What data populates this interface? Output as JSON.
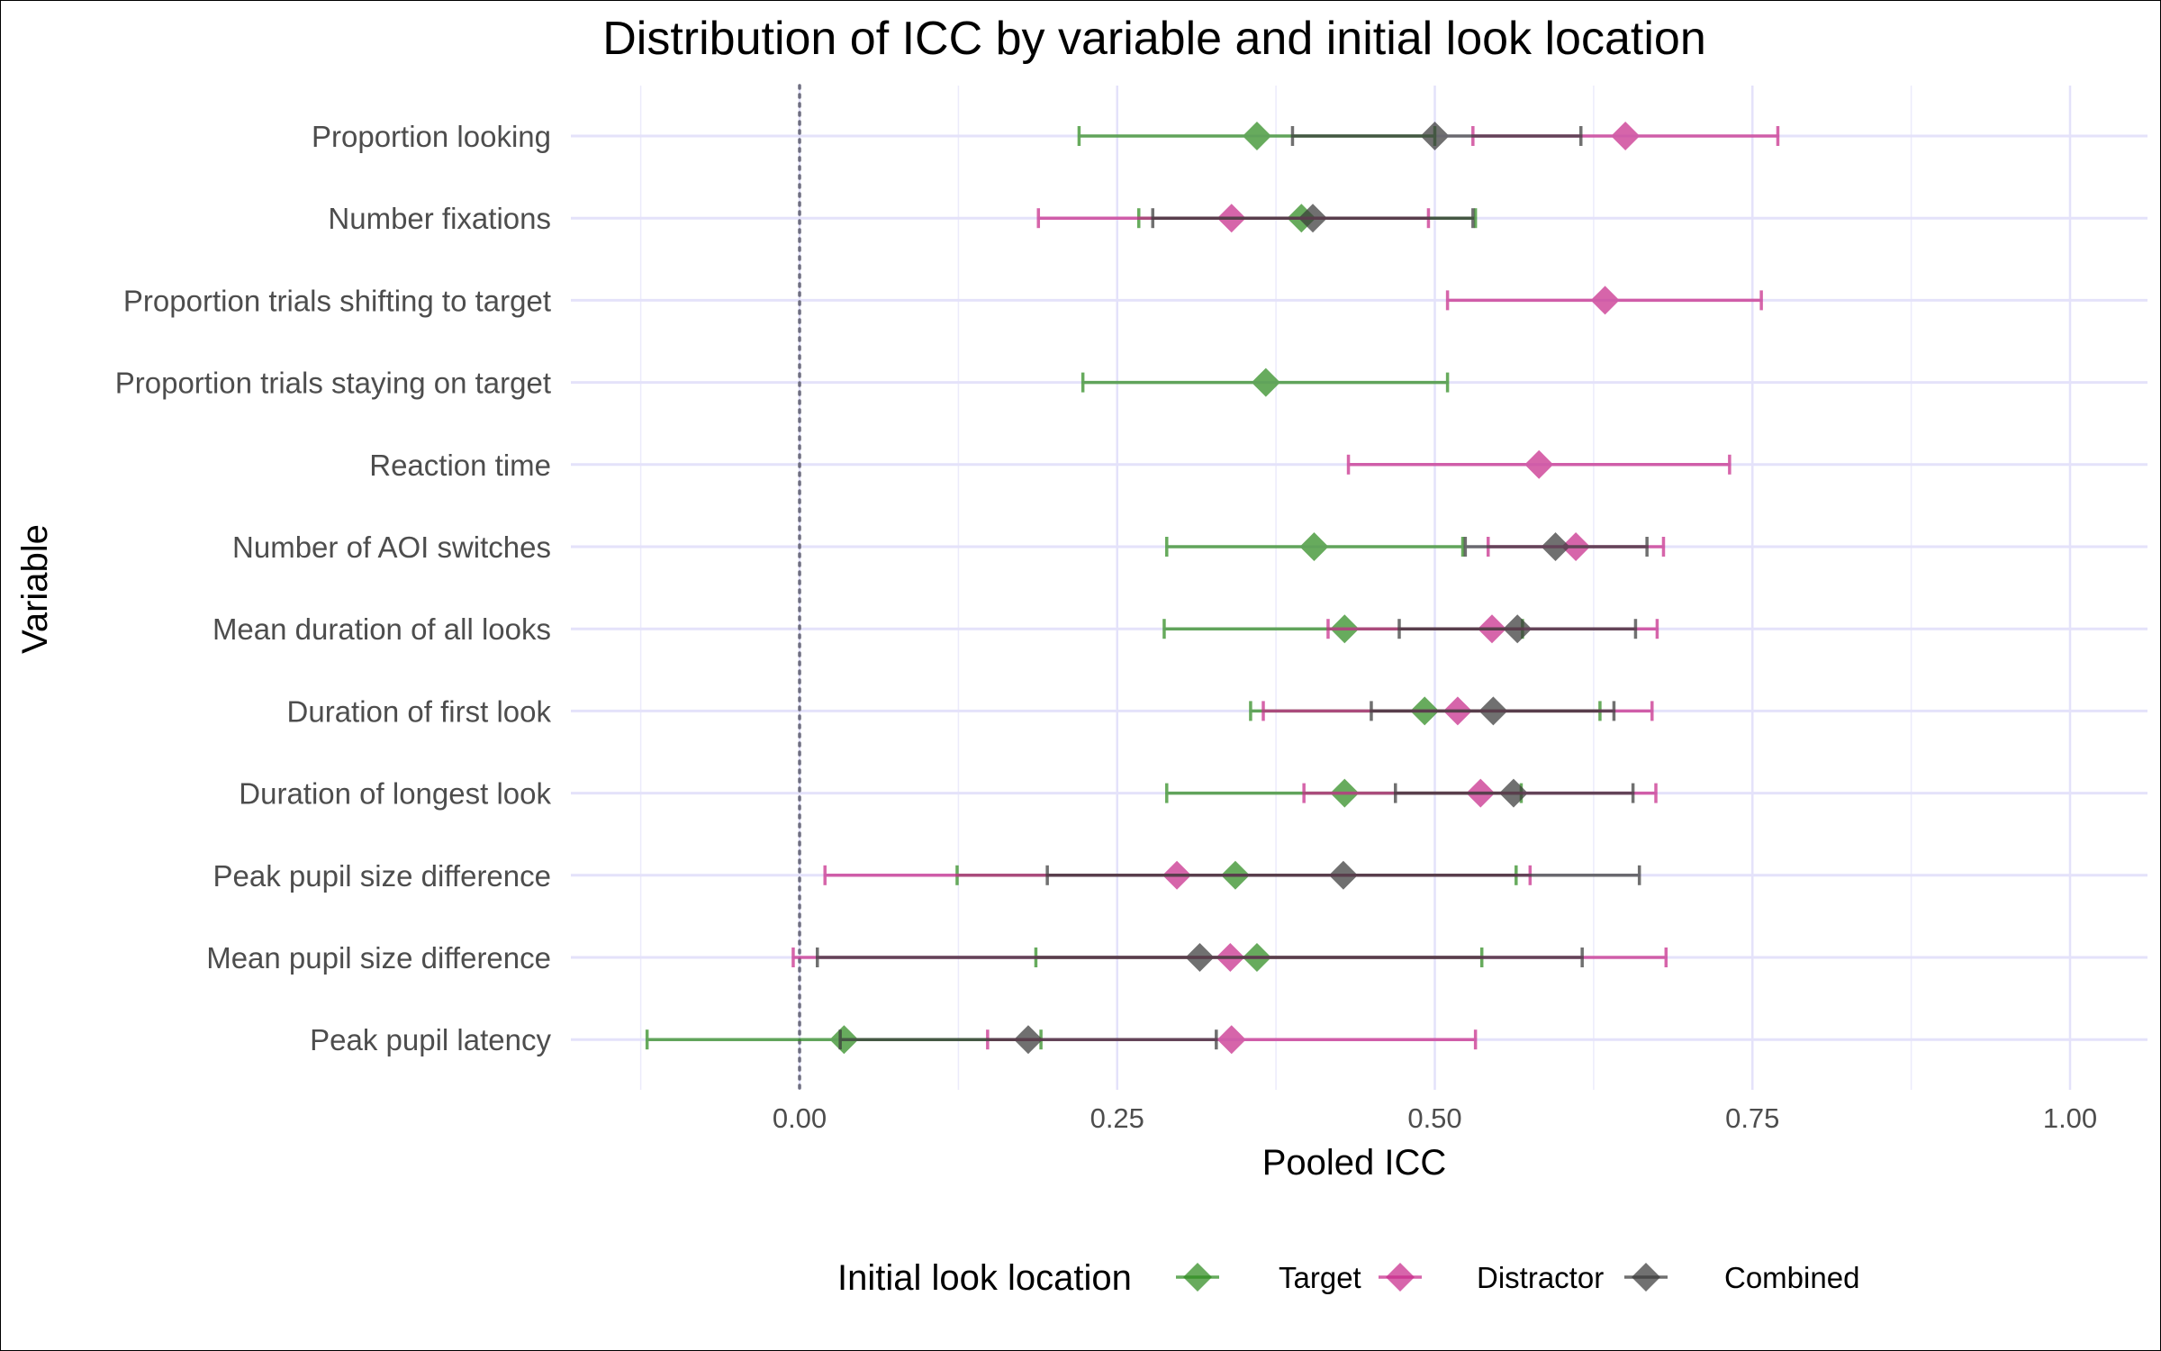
{
  "chart_data": {
    "type": "scatter",
    "title": "Distribution of ICC by variable and initial look location",
    "xlabel": "Pooled ICC",
    "ylabel": "Variable",
    "xlim": [
      -0.18,
      1.04
    ],
    "x_ticks": [
      0.0,
      0.25,
      0.5,
      0.75,
      1.0
    ],
    "x_tick_labels": [
      "0.00",
      "0.25",
      "0.50",
      "0.75",
      "1.00"
    ],
    "x_minor": [
      -0.125,
      0.125,
      0.375,
      0.625,
      0.875
    ],
    "reference_line": 0,
    "grid": true,
    "legend_position": "bottom",
    "legend_title": "Initial look location",
    "categories": [
      "Proportion looking",
      "Number fixations",
      "Proportion trials shifting to target",
      "Proportion trials staying on target",
      "Reaction time",
      "Number of AOI switches",
      "Mean duration of all looks",
      "Duration of first look",
      "Duration of longest look",
      "Peak pupil size difference",
      "Mean pupil size difference",
      "Peak pupil latency"
    ],
    "series": [
      {
        "name": "Target",
        "color": "#2e8b1f",
        "points": [
          {
            "category": "Proportion looking",
            "value": 0.36,
            "low": 0.22,
            "high": 0.5
          },
          {
            "category": "Number fixations",
            "value": 0.395,
            "low": 0.267,
            "high": 0.532
          },
          {
            "category": "Proportion trials staying on target",
            "value": 0.367,
            "low": 0.223,
            "high": 0.51
          },
          {
            "category": "Number of AOI switches",
            "value": 0.405,
            "low": 0.289,
            "high": 0.522
          },
          {
            "category": "Mean duration of all looks",
            "value": 0.429,
            "low": 0.287,
            "high": 0.569
          },
          {
            "category": "Duration of first look",
            "value": 0.492,
            "low": 0.355,
            "high": 0.63
          },
          {
            "category": "Duration of longest look",
            "value": 0.429,
            "low": 0.289,
            "high": 0.568
          },
          {
            "category": "Peak pupil size difference",
            "value": 0.343,
            "low": 0.124,
            "high": 0.564
          },
          {
            "category": "Mean pupil size difference",
            "value": 0.36,
            "low": 0.186,
            "high": 0.537
          },
          {
            "category": "Peak pupil latency",
            "value": 0.035,
            "low": -0.12,
            "high": 0.19
          }
        ]
      },
      {
        "name": "Distractor",
        "color": "#c72a8a",
        "points": [
          {
            "category": "Proportion looking",
            "value": 0.65,
            "low": 0.53,
            "high": 0.77
          },
          {
            "category": "Number fixations",
            "value": 0.34,
            "low": 0.188,
            "high": 0.495
          },
          {
            "category": "Proportion trials shifting to target",
            "value": 0.634,
            "low": 0.51,
            "high": 0.757
          },
          {
            "category": "Reaction time",
            "value": 0.582,
            "low": 0.432,
            "high": 0.732
          },
          {
            "category": "Number of AOI switches",
            "value": 0.611,
            "low": 0.542,
            "high": 0.68
          },
          {
            "category": "Mean duration of all looks",
            "value": 0.545,
            "low": 0.416,
            "high": 0.675
          },
          {
            "category": "Duration of first look",
            "value": 0.518,
            "low": 0.365,
            "high": 0.671
          },
          {
            "category": "Duration of longest look",
            "value": 0.536,
            "low": 0.397,
            "high": 0.674
          },
          {
            "category": "Peak pupil size difference",
            "value": 0.297,
            "low": 0.02,
            "high": 0.575
          },
          {
            "category": "Mean pupil size difference",
            "value": 0.339,
            "low": -0.005,
            "high": 0.682
          },
          {
            "category": "Peak pupil latency",
            "value": 0.34,
            "low": 0.148,
            "high": 0.532
          }
        ]
      },
      {
        "name": "Combined",
        "color": "#3a3a3a",
        "points": [
          {
            "category": "Proportion looking",
            "value": 0.5,
            "low": 0.388,
            "high": 0.615
          },
          {
            "category": "Number fixations",
            "value": 0.404,
            "low": 0.278,
            "high": 0.53
          },
          {
            "category": "Number of AOI switches",
            "value": 0.595,
            "low": 0.524,
            "high": 0.667
          },
          {
            "category": "Mean duration of all looks",
            "value": 0.565,
            "low": 0.472,
            "high": 0.658
          },
          {
            "category": "Duration of first look",
            "value": 0.546,
            "low": 0.45,
            "high": 0.641
          },
          {
            "category": "Duration of longest look",
            "value": 0.562,
            "low": 0.469,
            "high": 0.656
          },
          {
            "category": "Peak pupil size difference",
            "value": 0.428,
            "low": 0.195,
            "high": 0.661
          },
          {
            "category": "Mean pupil size difference",
            "value": 0.315,
            "low": 0.014,
            "high": 0.616
          },
          {
            "category": "Peak pupil latency",
            "value": 0.18,
            "low": 0.032,
            "high": 0.328
          }
        ]
      }
    ]
  }
}
